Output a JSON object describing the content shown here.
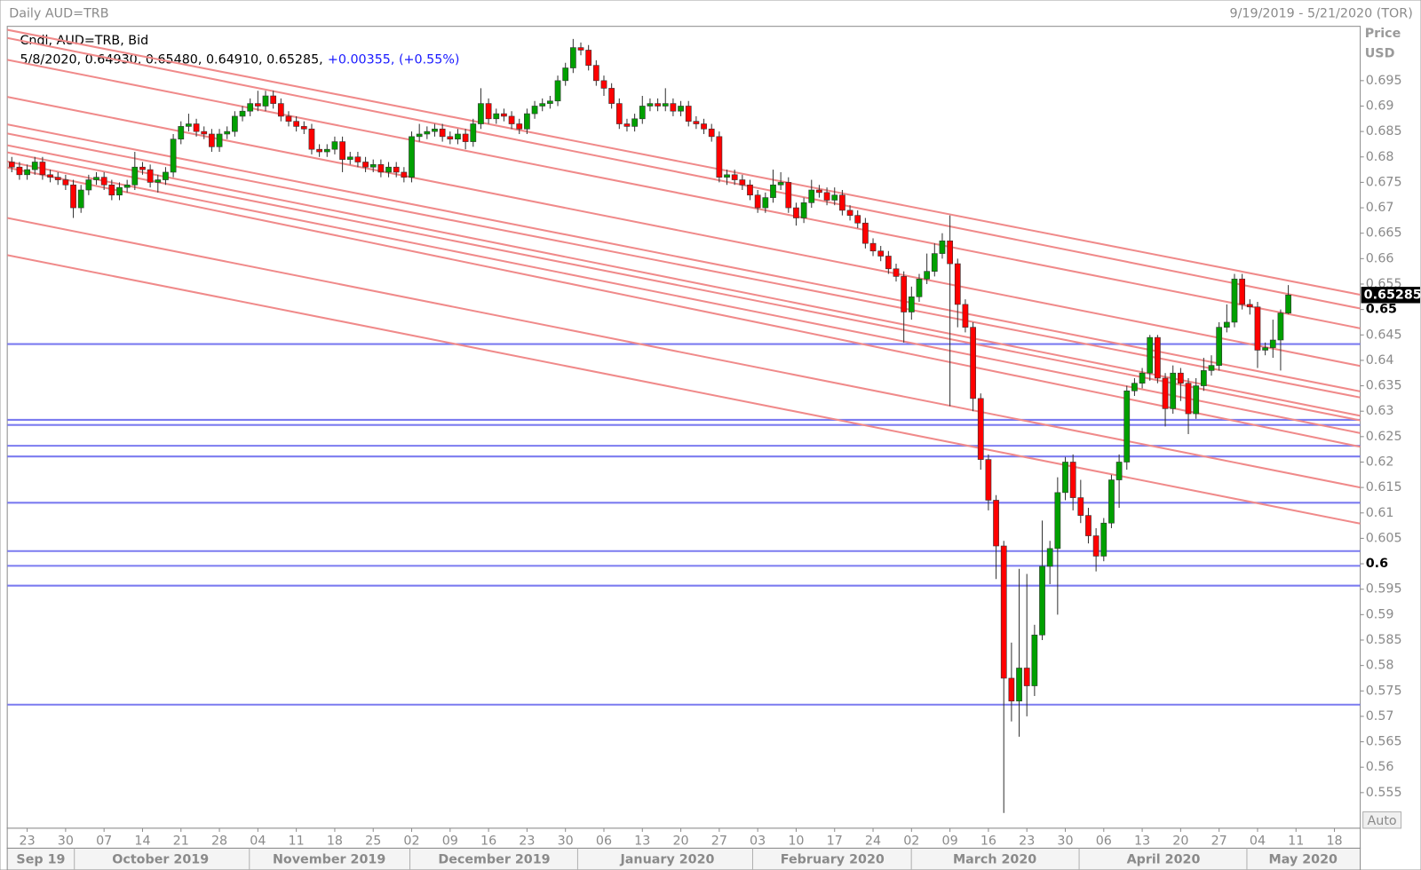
{
  "chart_data": {
    "type": "candlestick",
    "title": "Daily AUD=TRB",
    "date_range": "9/19/2019 - 5/21/2020 (TOR)",
    "series_label": "Cndl, AUD=TRB, Bid",
    "info_line": "5/8/2020, 0.64930, 0.65480, 0.64910, 0.65285,",
    "change_text": "+0.00355, (+0.55%)",
    "y_axis_title": "Price",
    "y_axis_unit": "USD",
    "scale_button": "Auto",
    "up_color": "#00a000",
    "down_color": "#ff0000",
    "trendline_color": "#f08a8a",
    "hline_color": "#7b7bf0",
    "grid": false,
    "ylim": [
      0.548,
      0.7055
    ],
    "yticks": [
      0.555,
      0.56,
      0.565,
      0.57,
      0.575,
      0.58,
      0.585,
      0.59,
      0.595,
      0.6,
      0.605,
      0.61,
      0.615,
      0.62,
      0.625,
      0.63,
      0.635,
      0.64,
      0.645,
      0.65,
      0.655,
      0.66,
      0.665,
      0.67,
      0.675,
      0.68,
      0.685,
      0.69,
      0.695
    ],
    "bold_ticks": [
      0.6,
      0.65
    ],
    "month_labels": [
      "Sep 19",
      "October 2019",
      "November 2019",
      "December 2019",
      "January 2020",
      "February 2020",
      "March 2020",
      "April 2020",
      "May 2020"
    ],
    "categories": [
      null,
      null,
      "23",
      null,
      null,
      null,
      null,
      "30",
      null,
      null,
      null,
      null,
      "07",
      null,
      null,
      null,
      null,
      "14",
      null,
      null,
      null,
      null,
      "21",
      null,
      null,
      null,
      null,
      "28",
      null,
      null,
      null,
      null,
      "04",
      null,
      null,
      null,
      null,
      "11",
      null,
      null,
      null,
      null,
      "18",
      null,
      null,
      null,
      null,
      "25",
      null,
      null,
      null,
      null,
      "02",
      null,
      null,
      null,
      null,
      "09",
      null,
      null,
      null,
      null,
      "16",
      null,
      null,
      null,
      null,
      "23",
      null,
      null,
      null,
      null,
      "30",
      null,
      null,
      null,
      null,
      "06",
      null,
      null,
      null,
      null,
      "13",
      null,
      null,
      null,
      null,
      "20",
      null,
      null,
      null,
      null,
      "27",
      null,
      null,
      null,
      null,
      "03",
      null,
      null,
      null,
      null,
      "10",
      null,
      null,
      null,
      null,
      "17",
      null,
      null,
      null,
      null,
      "24",
      null,
      null,
      null,
      null,
      "02",
      null,
      null,
      null,
      null,
      "09",
      null,
      null,
      null,
      null,
      "16",
      null,
      null,
      null,
      null,
      "23",
      null,
      null,
      null,
      null,
      "30",
      null,
      null,
      null,
      null,
      "06",
      null,
      null,
      null,
      null,
      "13",
      null,
      null,
      null,
      null,
      "20",
      null,
      null,
      null,
      null,
      "27",
      null,
      null,
      null,
      null,
      "04",
      null,
      null,
      null,
      null,
      "11",
      null,
      null,
      null,
      null,
      "18",
      null,
      null,
      null,
      null
    ],
    "open": [
      0.679,
      0.678,
      0.6765,
      0.6775,
      0.679,
      0.6765,
      0.676,
      0.6755,
      0.6745,
      0.67,
      0.6735,
      0.6755,
      0.676,
      0.6745,
      0.6725,
      0.674,
      0.6745,
      0.678,
      0.6775,
      0.675,
      0.6755,
      0.677,
      0.6835,
      0.686,
      0.6865,
      0.685,
      0.6845,
      0.682,
      0.6845,
      0.685,
      0.688,
      0.689,
      0.6905,
      0.69,
      0.692,
      0.6905,
      0.688,
      0.687,
      0.686,
      0.6855,
      0.6815,
      0.681,
      0.6815,
      0.683,
      0.6795,
      0.68,
      0.679,
      0.678,
      0.6785,
      0.677,
      0.678,
      0.677,
      0.676,
      0.684,
      0.6845,
      0.685,
      0.6855,
      0.684,
      0.6835,
      0.6845,
      0.683,
      0.6865,
      0.6905,
      0.6875,
      0.6885,
      0.688,
      0.6865,
      0.6855,
      0.6885,
      0.69,
      0.6905,
      0.691,
      0.695,
      0.6975,
      0.7015,
      0.701,
      0.698,
      0.695,
      0.6935,
      0.6905,
      0.6865,
      0.686,
      0.6875,
      0.69,
      0.6905,
      0.69,
      0.6905,
      0.689,
      0.69,
      0.687,
      0.6865,
      0.6855,
      0.684,
      0.676,
      0.6765,
      0.6755,
      0.6745,
      0.6725,
      0.67,
      0.672,
      0.6745,
      0.675,
      0.67,
      0.668,
      0.671,
      0.6735,
      0.673,
      0.6715,
      0.6725,
      0.6695,
      0.6685,
      0.667,
      0.663,
      0.6615,
      0.6605,
      0.658,
      0.6565,
      0.6495,
      0.6525,
      0.656,
      0.6575,
      0.661,
      0.6635,
      0.659,
      0.651,
      0.6465,
      0.6325,
      0.6205,
      0.6125,
      0.6035,
      0.5775,
      0.573,
      0.5795,
      0.576,
      0.586,
      0.5995,
      0.603,
      0.614,
      0.62,
      0.613,
      0.6095,
      0.6055,
      0.6015,
      0.608,
      0.6165,
      0.62,
      0.634,
      0.6355,
      0.6375,
      0.6445,
      0.6365,
      0.6305,
      0.6375,
      0.6355,
      0.6295,
      0.635,
      0.638,
      0.639,
      0.6465,
      0.6475,
      0.656,
      0.651,
      0.6505,
      0.642,
      0.6425,
      0.644,
      0.6493,
      null,
      null,
      null,
      null,
      null,
      null,
      null,
      null,
      null,
      null
    ],
    "high": [
      0.68,
      0.679,
      0.6785,
      0.68,
      0.68,
      0.6775,
      0.677,
      0.6765,
      0.6755,
      0.6745,
      0.6765,
      0.677,
      0.677,
      0.6755,
      0.675,
      0.6755,
      0.681,
      0.679,
      0.6785,
      0.6765,
      0.678,
      0.6845,
      0.687,
      0.6885,
      0.6875,
      0.686,
      0.6855,
      0.6855,
      0.686,
      0.689,
      0.69,
      0.6915,
      0.693,
      0.693,
      0.693,
      0.6915,
      0.689,
      0.688,
      0.687,
      0.6865,
      0.6825,
      0.6825,
      0.684,
      0.684,
      0.681,
      0.681,
      0.68,
      0.6795,
      0.6795,
      0.679,
      0.679,
      0.678,
      0.685,
      0.6865,
      0.686,
      0.6865,
      0.6865,
      0.685,
      0.6855,
      0.6855,
      0.6875,
      0.6935,
      0.6915,
      0.6895,
      0.6895,
      0.689,
      0.6875,
      0.6895,
      0.691,
      0.6915,
      0.692,
      0.696,
      0.6985,
      0.7032,
      0.7025,
      0.702,
      0.699,
      0.696,
      0.6945,
      0.6915,
      0.6875,
      0.6885,
      0.692,
      0.6915,
      0.6915,
      0.6935,
      0.6915,
      0.691,
      0.691,
      0.688,
      0.6875,
      0.6865,
      0.685,
      0.6775,
      0.6775,
      0.6765,
      0.6755,
      0.6735,
      0.673,
      0.6775,
      0.677,
      0.676,
      0.671,
      0.672,
      0.6755,
      0.6745,
      0.674,
      0.674,
      0.6735,
      0.6705,
      0.6695,
      0.668,
      0.664,
      0.6625,
      0.6615,
      0.659,
      0.6575,
      0.6545,
      0.657,
      0.661,
      0.663,
      0.665,
      0.6685,
      0.66,
      0.652,
      0.6475,
      0.6335,
      0.6215,
      0.6135,
      0.6045,
      0.5845,
      0.599,
      0.598,
      0.588,
      0.6085,
      0.6045,
      0.617,
      0.621,
      0.6215,
      0.6165,
      0.611,
      0.607,
      0.609,
      0.6175,
      0.6215,
      0.635,
      0.6365,
      0.6385,
      0.645,
      0.645,
      0.6375,
      0.639,
      0.6385,
      0.6365,
      0.6365,
      0.6405,
      0.641,
      0.6475,
      0.651,
      0.657,
      0.657,
      0.652,
      0.6515,
      0.6435,
      0.648,
      0.65,
      0.6548,
      null,
      null,
      null,
      null,
      null,
      null,
      null,
      null,
      null,
      null
    ],
    "low": [
      0.677,
      0.6755,
      0.6755,
      0.6765,
      0.6755,
      0.675,
      0.6745,
      0.6735,
      0.668,
      0.669,
      0.6725,
      0.6745,
      0.6735,
      0.6715,
      0.6715,
      0.673,
      0.6735,
      0.6765,
      0.674,
      0.673,
      0.6745,
      0.676,
      0.6825,
      0.685,
      0.684,
      0.6835,
      0.681,
      0.681,
      0.6835,
      0.684,
      0.687,
      0.688,
      0.689,
      0.689,
      0.6895,
      0.687,
      0.686,
      0.685,
      0.6845,
      0.6805,
      0.68,
      0.68,
      0.6805,
      0.677,
      0.6785,
      0.678,
      0.677,
      0.677,
      0.676,
      0.676,
      0.676,
      0.675,
      0.675,
      0.683,
      0.6835,
      0.684,
      0.683,
      0.6825,
      0.6825,
      0.6815,
      0.682,
      0.6855,
      0.6865,
      0.6865,
      0.687,
      0.6855,
      0.6845,
      0.6845,
      0.6875,
      0.689,
      0.6895,
      0.69,
      0.694,
      0.6965,
      0.7,
      0.697,
      0.694,
      0.692,
      0.6895,
      0.6855,
      0.685,
      0.685,
      0.6865,
      0.689,
      0.689,
      0.689,
      0.688,
      0.688,
      0.686,
      0.6855,
      0.6845,
      0.683,
      0.675,
      0.6745,
      0.6745,
      0.6735,
      0.6715,
      0.669,
      0.669,
      0.671,
      0.6735,
      0.669,
      0.6665,
      0.667,
      0.67,
      0.672,
      0.6705,
      0.6705,
      0.6685,
      0.6675,
      0.666,
      0.662,
      0.6605,
      0.6595,
      0.657,
      0.6555,
      0.6435,
      0.648,
      0.6515,
      0.655,
      0.6565,
      0.66,
      0.631,
      0.6465,
      0.6455,
      0.63,
      0.6185,
      0.6105,
      0.597,
      0.551,
      0.569,
      0.566,
      0.57,
      0.574,
      0.585,
      0.596,
      0.59,
      0.6125,
      0.6105,
      0.608,
      0.604,
      0.5985,
      0.6005,
      0.607,
      0.611,
      0.6185,
      0.633,
      0.6345,
      0.636,
      0.6355,
      0.627,
      0.6295,
      0.632,
      0.6255,
      0.6285,
      0.634,
      0.637,
      0.638,
      0.6455,
      0.6465,
      0.65,
      0.649,
      0.6385,
      0.641,
      0.6405,
      0.638,
      0.6491,
      null,
      null,
      null,
      null,
      null,
      null,
      null,
      null,
      null,
      null
    ],
    "close": [
      0.678,
      0.6765,
      0.6775,
      0.679,
      0.6765,
      0.676,
      0.6755,
      0.6745,
      0.67,
      0.6735,
      0.6755,
      0.676,
      0.6745,
      0.6725,
      0.674,
      0.6745,
      0.678,
      0.6775,
      0.675,
      0.6755,
      0.677,
      0.6835,
      0.686,
      0.6865,
      0.685,
      0.6845,
      0.682,
      0.6845,
      0.685,
      0.688,
      0.689,
      0.6905,
      0.69,
      0.692,
      0.6905,
      0.688,
      0.687,
      0.686,
      0.6855,
      0.6815,
      0.681,
      0.6815,
      0.683,
      0.6795,
      0.68,
      0.679,
      0.678,
      0.6785,
      0.677,
      0.678,
      0.677,
      0.676,
      0.684,
      0.6845,
      0.685,
      0.6855,
      0.684,
      0.6835,
      0.6845,
      0.683,
      0.6865,
      0.6905,
      0.6875,
      0.6885,
      0.688,
      0.6865,
      0.6855,
      0.6885,
      0.69,
      0.6905,
      0.691,
      0.695,
      0.6975,
      0.7015,
      0.701,
      0.698,
      0.695,
      0.6935,
      0.6905,
      0.6865,
      0.686,
      0.6875,
      0.69,
      0.6905,
      0.69,
      0.6905,
      0.689,
      0.69,
      0.687,
      0.6865,
      0.6855,
      0.684,
      0.676,
      0.6765,
      0.6755,
      0.6745,
      0.6725,
      0.67,
      0.672,
      0.6745,
      0.675,
      0.67,
      0.668,
      0.671,
      0.6735,
      0.673,
      0.6715,
      0.6725,
      0.6695,
      0.6685,
      0.667,
      0.663,
      0.6615,
      0.6605,
      0.658,
      0.6565,
      0.6495,
      0.6525,
      0.656,
      0.6575,
      0.661,
      0.6635,
      0.659,
      0.651,
      0.6465,
      0.6325,
      0.6205,
      0.6125,
      0.6035,
      0.5775,
      0.573,
      0.5795,
      0.576,
      0.586,
      0.5995,
      0.603,
      0.614,
      0.62,
      0.613,
      0.6095,
      0.6055,
      0.6015,
      0.608,
      0.6165,
      0.62,
      0.634,
      0.6355,
      0.6375,
      0.6445,
      0.6365,
      0.6305,
      0.6375,
      0.6355,
      0.6295,
      0.635,
      0.638,
      0.639,
      0.6465,
      0.6475,
      0.656,
      0.651,
      0.6505,
      0.642,
      0.6425,
      0.644,
      0.6493,
      0.65285,
      null,
      null,
      null,
      null,
      null,
      null,
      null,
      null,
      null,
      null
    ],
    "trendlines": [
      {
        "start": 0.705,
        "end": 0.6529
      },
      {
        "start": 0.7034,
        "end": 0.6502
      },
      {
        "start": 0.6991,
        "end": 0.6463
      },
      {
        "start": 0.6918,
        "end": 0.6389
      },
      {
        "start": 0.6864,
        "end": 0.6339
      },
      {
        "start": 0.6846,
        "end": 0.6327
      },
      {
        "start": 0.6823,
        "end": 0.6291
      },
      {
        "start": 0.6809,
        "end": 0.6282
      },
      {
        "start": 0.6791,
        "end": 0.6257
      },
      {
        "start": 0.6779,
        "end": 0.623
      },
      {
        "start": 0.668,
        "end": 0.615
      },
      {
        "start": 0.6607,
        "end": 0.6079
      }
    ],
    "hlines": [
      0.6432,
      0.6283,
      0.6273,
      0.6232,
      0.6211,
      0.612,
      0.6025,
      0.5996,
      0.5957,
      0.5723
    ]
  }
}
